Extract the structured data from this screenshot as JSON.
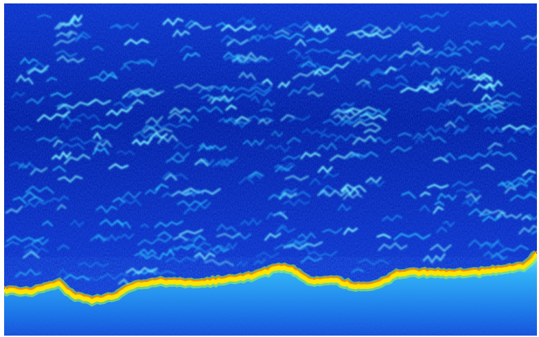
{
  "image": {
    "kind": "echosounder echogram",
    "description_visible_text": "",
    "colors": {
      "background_deep": "#0018a8",
      "water_column": "#0a2fd0",
      "fish_echo": "#35e6ff",
      "fish_echo_strong": "#7dfcff",
      "bottom_strong": "#ffe300",
      "bottom_edge": "#ff8a00",
      "bottom_glow": "#9dff3a",
      "seabed_fill": "#1fa0f0"
    }
  }
}
